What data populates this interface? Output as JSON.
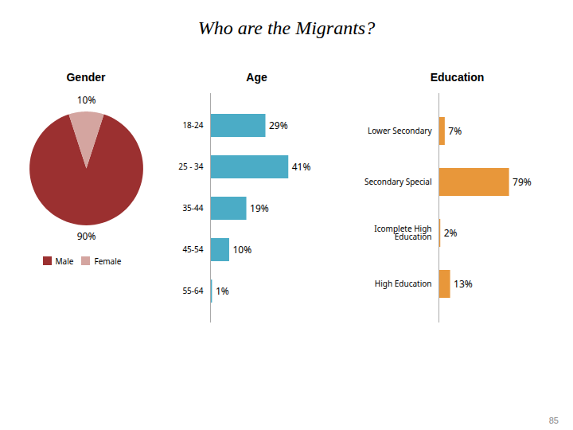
{
  "title": "Who are the Migrants?",
  "annotations": [
    "85"
  ],
  "chart_data": [
    {
      "type": "pie",
      "title": "Gender",
      "categories": [
        "Male",
        "Female"
      ],
      "values": [
        90,
        10
      ],
      "value_labels": [
        "90%",
        "10%"
      ],
      "colors": [
        "#9B3030",
        "#D4A5A0"
      ],
      "data_labels": true,
      "legend": "bottom"
    },
    {
      "type": "bar",
      "orientation": "horizontal",
      "title": "Age",
      "categories": [
        "18-24",
        "25 - 34",
        "35-44",
        "45-54",
        "55-64"
      ],
      "values": [
        29,
        41,
        19,
        10,
        1
      ],
      "value_labels": [
        "29%",
        "41%",
        "19%",
        "10%",
        "1%"
      ],
      "color": "#4BACC6",
      "xlim": [
        0,
        58
      ],
      "data_labels": true,
      "tick_labels": "y"
    },
    {
      "type": "bar",
      "orientation": "horizontal",
      "title": "Education",
      "categories": [
        "Lower Secondary",
        "Secondary Special",
        "Icomplete High\nEducation",
        "High Education"
      ],
      "values": [
        7,
        79,
        2,
        13
      ],
      "value_labels": [
        "7%",
        "79%",
        "2%",
        "13%"
      ],
      "color": "#E8973A",
      "xlim": [
        0,
        115
      ],
      "data_labels": true,
      "tick_labels": "y"
    }
  ]
}
